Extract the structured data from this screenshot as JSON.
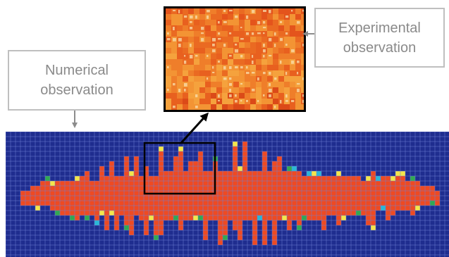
{
  "callouts": {
    "numerical": "Numerical\nobservation",
    "experimental": "Experimental\nobservation"
  },
  "colors": {
    "mesh_background": "#1f2d8f",
    "mesh_grid": "#6f7fd1",
    "failed_element": "#ee4a22",
    "partial_yellow": "#f4e64a",
    "partial_green": "#32a852",
    "partial_cyan": "#2bb7d6",
    "callout_border": "#bfbfbf",
    "callout_text": "#8a8a8a",
    "arrow_gray": "#8c8c8c",
    "highlight_box": "#000000"
  }
}
